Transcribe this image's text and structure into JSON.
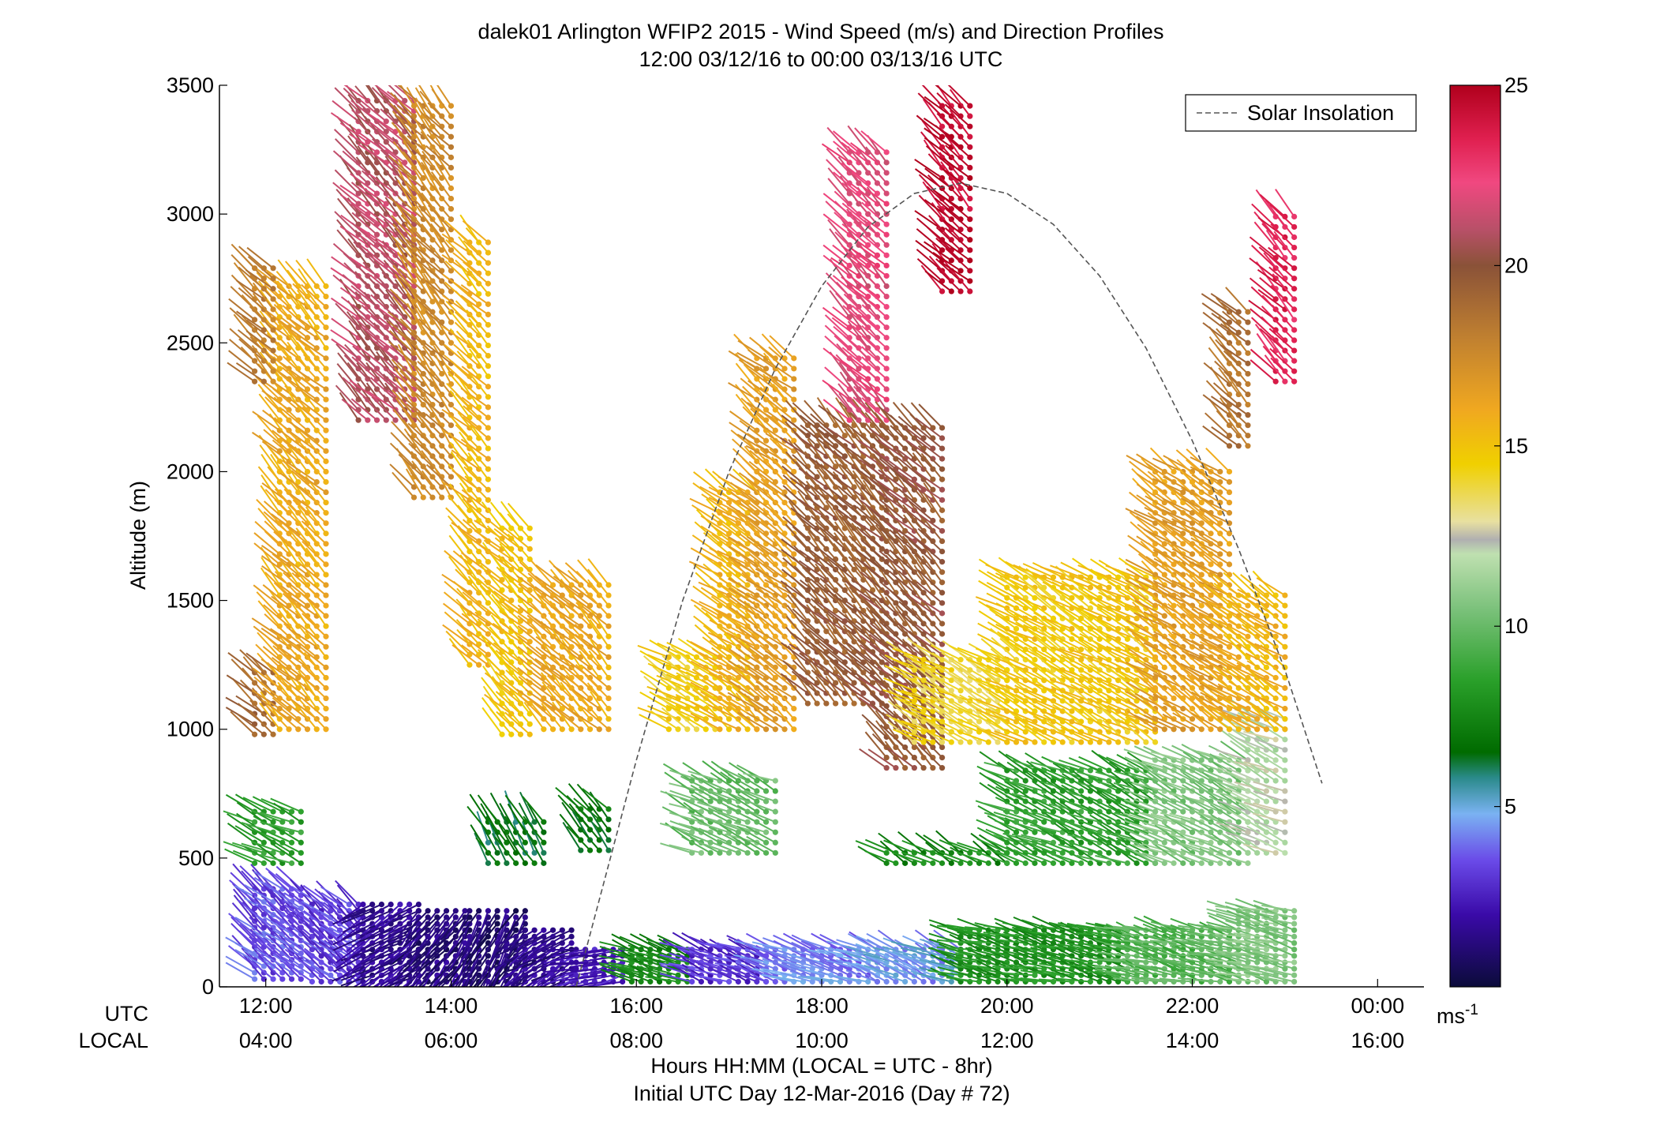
{
  "chart_data": {
    "type": "scatter",
    "title_line1": "dalek01 Arlington WFIP2 2015 - Wind Speed (m/s) and Direction Profiles",
    "title_line2": "12:00 03/12/16 to 00:00 03/13/16  UTC",
    "ylabel": "Altitude (m)",
    "xlabel_line1": "Hours HH:MM  (LOCAL = UTC - 8hr)",
    "xlabel_line2": "Initial UTC Day 12-Mar-2016 (Day # 72)",
    "row_label_utc": "UTC",
    "row_label_local": "LOCAL",
    "x_units": "hours UTC from 12:00",
    "xlim": [
      -0.5,
      12.5
    ],
    "ylim": [
      0,
      3500
    ],
    "yticks": [
      0,
      500,
      1000,
      1500,
      2000,
      2500,
      3000,
      3500
    ],
    "ytick_labels": [
      "0",
      "500",
      "1000",
      "1500",
      "2000",
      "2500",
      "3000",
      "3500"
    ],
    "xticks": [
      0,
      2,
      4,
      6,
      8,
      10,
      12
    ],
    "xtick_labels_utc": [
      "12:00",
      "14:00",
      "16:00",
      "18:00",
      "20:00",
      "22:00",
      "00:00"
    ],
    "xtick_labels_local": [
      "04:00",
      "06:00",
      "08:00",
      "10:00",
      "12:00",
      "14:00",
      "16:00"
    ],
    "grid": false,
    "legend": {
      "placement": "top-right",
      "entries": [
        {
          "label": "Solar Insolation",
          "style": "dashed",
          "color": "#555555"
        }
      ]
    },
    "colorbar": {
      "min": 0,
      "max": 25,
      "ticks": [
        5,
        10,
        15,
        20,
        25
      ],
      "tick_labels": [
        "5",
        "10",
        "15",
        "20",
        "25"
      ],
      "units_base": "ms",
      "units_exp": "-1",
      "stops": [
        [
          0,
          "#0b0b3a"
        ],
        [
          2,
          "#3a0aa8"
        ],
        [
          3.5,
          "#6a4ae8"
        ],
        [
          4.8,
          "#7ab2f2"
        ],
        [
          5.8,
          "#2a8a8a"
        ],
        [
          6.5,
          "#006b00"
        ],
        [
          8.5,
          "#2aa02a"
        ],
        [
          10.5,
          "#7cc27c"
        ],
        [
          12,
          "#bfe0b0"
        ],
        [
          12.4,
          "#b0b0b0"
        ],
        [
          12.9,
          "#e8e0a0"
        ],
        [
          14.5,
          "#f0d000"
        ],
        [
          16,
          "#f0a820"
        ],
        [
          18,
          "#c08030"
        ],
        [
          20,
          "#8a5238"
        ],
        [
          21,
          "#b85068"
        ],
        [
          22.3,
          "#f04880"
        ],
        [
          23.5,
          "#e02050"
        ],
        [
          25,
          "#b0001c"
        ]
      ]
    },
    "solar_insolation": {
      "style": "dashed",
      "points": [
        [
          3.35,
          0
        ],
        [
          4.0,
          880
        ],
        [
          4.5,
          1500
        ],
        [
          5.0,
          2000
        ],
        [
          5.5,
          2400
        ],
        [
          6.0,
          2720
        ],
        [
          6.5,
          2950
        ],
        [
          7.0,
          3080
        ],
        [
          7.5,
          3120
        ],
        [
          8.0,
          3080
        ],
        [
          8.5,
          2960
        ],
        [
          9.0,
          2760
        ],
        [
          9.5,
          2480
        ],
        [
          10.0,
          2120
        ],
        [
          10.5,
          1700
        ],
        [
          11.0,
          1230
        ],
        [
          11.4,
          790
        ]
      ]
    },
    "wind_profiles_note": "barb segments: [time_start, time_end, alt_min, alt_max, step, speed_ms, direction_deg]",
    "wind_profiles": [
      [
        -0.12,
        0.45,
        30,
        380,
        25,
        3.5,
        230
      ],
      [
        0.5,
        1.0,
        20,
        340,
        25,
        3.2,
        230
      ],
      [
        1.05,
        1.65,
        20,
        330,
        25,
        1.6,
        300
      ],
      [
        1.65,
        2.15,
        20,
        310,
        25,
        1.2,
        320
      ],
      [
        2.2,
        2.8,
        20,
        300,
        25,
        1.0,
        330
      ],
      [
        2.8,
        3.3,
        20,
        230,
        25,
        1.5,
        300
      ],
      [
        3.35,
        3.85,
        20,
        150,
        25,
        2.2,
        280
      ],
      [
        3.95,
        4.6,
        20,
        150,
        25,
        7.5,
        250
      ],
      [
        4.6,
        5.4,
        20,
        160,
        25,
        3.0,
        250
      ],
      [
        5.4,
        6.6,
        20,
        160,
        25,
        4.2,
        250
      ],
      [
        6.6,
        7.5,
        20,
        160,
        25,
        4.6,
        245
      ],
      [
        7.5,
        9.3,
        20,
        220,
        25,
        8.0,
        255
      ],
      [
        9.3,
        10.5,
        20,
        220,
        25,
        9.5,
        255
      ],
      [
        10.5,
        11.1,
        20,
        300,
        25,
        10.5,
        255
      ],
      [
        -0.12,
        0.45,
        480,
        680,
        40,
        8.5,
        245
      ],
      [
        2.4,
        3.05,
        480,
        650,
        40,
        6.5,
        210
      ],
      [
        3.4,
        3.75,
        530,
        700,
        40,
        6.8,
        220
      ],
      [
        4.6,
        5.5,
        520,
        800,
        40,
        10.0,
        245
      ],
      [
        6.7,
        8.0,
        480,
        530,
        40,
        7.5,
        240
      ],
      [
        8.0,
        9.6,
        480,
        850,
        40,
        8.5,
        245
      ],
      [
        9.6,
        10.6,
        480,
        880,
        40,
        10.5,
        245
      ],
      [
        10.6,
        11.0,
        520,
        1050,
        40,
        12.0,
        245
      ],
      [
        -0.12,
        0.1,
        980,
        1250,
        40,
        19.0,
        230
      ],
      [
        0.15,
        0.65,
        1000,
        2750,
        40,
        16.0,
        225
      ],
      [
        -0.12,
        0.1,
        2350,
        2800,
        40,
        18.0,
        225
      ],
      [
        1.0,
        1.6,
        2200,
        3450,
        40,
        21.0,
        225
      ],
      [
        1.6,
        2.05,
        1900,
        3450,
        40,
        17.5,
        220
      ],
      [
        2.2,
        2.45,
        1250,
        2900,
        40,
        15.5,
        225
      ],
      [
        2.55,
        2.9,
        980,
        1800,
        40,
        15.0,
        225
      ],
      [
        3.0,
        3.7,
        1000,
        1580,
        40,
        16.0,
        225
      ],
      [
        4.35,
        4.9,
        1000,
        1300,
        40,
        14.5,
        240
      ],
      [
        4.9,
        5.3,
        1000,
        1950,
        40,
        15.5,
        235
      ],
      [
        5.3,
        5.75,
        1000,
        2450,
        40,
        16.5,
        230
      ],
      [
        5.85,
        6.7,
        1100,
        2200,
        40,
        19.5,
        225
      ],
      [
        6.3,
        6.7,
        2200,
        3250,
        40,
        22.0,
        225
      ],
      [
        6.7,
        7.3,
        850,
        2200,
        40,
        19.8,
        225
      ],
      [
        7.3,
        7.65,
        2700,
        3450,
        40,
        24.5,
        225
      ],
      [
        7.0,
        8.0,
        950,
        1300,
        40,
        14.0,
        240
      ],
      [
        8.0,
        9.6,
        950,
        1600,
        40,
        14.8,
        240
      ],
      [
        9.6,
        10.4,
        1000,
        2000,
        40,
        16.5,
        235
      ],
      [
        10.4,
        11.0,
        1000,
        1550,
        40,
        15.5,
        235
      ],
      [
        10.4,
        10.6,
        2100,
        2650,
        40,
        18.5,
        225
      ],
      [
        10.9,
        11.1,
        2350,
        3000,
        40,
        23.5,
        225
      ]
    ]
  }
}
